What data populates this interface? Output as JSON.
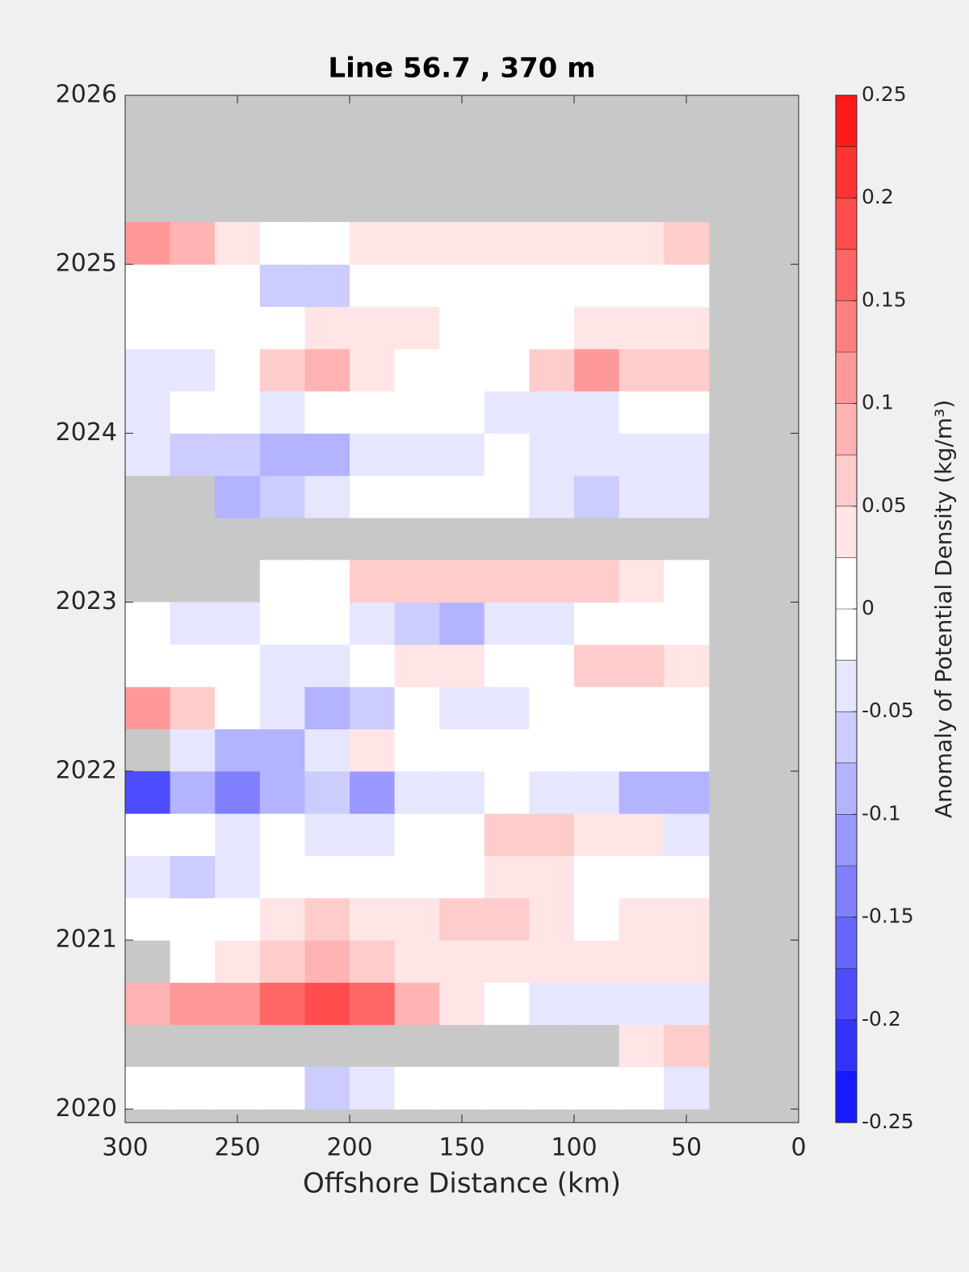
{
  "chart_data": {
    "type": "contourf",
    "title": "Line 56.7 , 370 m",
    "x_label": "Offshore Distance (km)",
    "colorbar_label": "Anomaly of Potential Density (kg/m³)",
    "xlim": [
      300,
      0
    ],
    "xticks": [
      300,
      250,
      200,
      150,
      100,
      50,
      0
    ],
    "ylim": [
      2019.92,
      2026
    ],
    "yticks": [
      2020,
      2021,
      2022,
      2023,
      2024,
      2025,
      2026
    ],
    "clim": [
      -0.25,
      0.25
    ],
    "cticks": [
      -0.25,
      -0.2,
      -0.15,
      -0.1,
      -0.05,
      0,
      0.05,
      0.1,
      0.15,
      0.2,
      0.25
    ],
    "levels": [
      -0.25,
      -0.225,
      -0.2,
      -0.175,
      -0.15,
      -0.125,
      -0.1,
      -0.075,
      -0.05,
      -0.025,
      0,
      0.025,
      0.05,
      0.075,
      0.1,
      0.125,
      0.15,
      0.175,
      0.2,
      0.225,
      0.25
    ],
    "colormap": [
      "#0000ff",
      "#ffffff",
      "#ff0000"
    ],
    "missing_color": "#c8c8c8",
    "x": [
      290,
      270,
      250,
      230,
      210,
      190,
      170,
      150,
      130,
      110,
      90,
      70,
      50
    ],
    "y": [
      2020.125,
      2020.375,
      2020.625,
      2020.875,
      2021.125,
      2021.375,
      2021.625,
      2021.875,
      2022.125,
      2022.375,
      2022.625,
      2022.875,
      2023.125,
      2023.375,
      2023.625,
      2023.875,
      2024.125,
      2024.375,
      2024.625,
      2024.875,
      2025.125
    ],
    "z": [
      [
        0,
        0,
        0,
        -0.02,
        -0.06,
        -0.04,
        0,
        0,
        0,
        0,
        0,
        -0.02,
        -0.05
      ],
      [
        null,
        null,
        null,
        null,
        null,
        null,
        null,
        null,
        null,
        null,
        null,
        0.03,
        0.05
      ],
      [
        0.08,
        0.1,
        0.12,
        0.17,
        0.18,
        0.15,
        0.08,
        0.03,
        0,
        -0.03,
        -0.05,
        -0.03,
        -0.03
      ],
      [
        null,
        0,
        0.04,
        0.06,
        0.08,
        0.07,
        0.04,
        0.03,
        0.03,
        0.03,
        0.03,
        0.03,
        0.03
      ],
      [
        0,
        0,
        0,
        0.03,
        0.05,
        0.03,
        0.03,
        0.05,
        0.05,
        0.03,
        0.02,
        0.03,
        0.03
      ],
      [
        -0.05,
        -0.07,
        -0.03,
        0,
        0,
        0,
        0,
        0,
        0.03,
        0.03,
        0.02,
        0,
        0
      ],
      [
        0,
        0,
        -0.03,
        0,
        -0.04,
        -0.05,
        0,
        0,
        0.05,
        0.05,
        0.03,
        0.03,
        -0.04
      ],
      [
        -0.18,
        -0.1,
        -0.15,
        -0.1,
        -0.06,
        -0.12,
        -0.04,
        -0.03,
        0,
        -0.05,
        -0.05,
        -0.08,
        -0.1
      ],
      [
        null,
        -0.05,
        -0.1,
        -0.08,
        -0.03,
        0.04,
        0,
        0,
        0,
        0,
        -0.02,
        0,
        0
      ],
      [
        0.1,
        0.06,
        0,
        -0.03,
        -0.08,
        -0.06,
        0,
        -0.05,
        -0.03,
        0,
        0,
        0,
        0
      ],
      [
        0,
        0,
        0,
        -0.05,
        -0.03,
        0,
        0.03,
        0.04,
        0,
        0,
        0.05,
        0.06,
        0.03
      ],
      [
        0,
        -0.04,
        -0.04,
        0,
        0,
        -0.03,
        -0.06,
        -0.08,
        -0.05,
        -0.03,
        -0.02,
        0,
        0
      ],
      [
        null,
        null,
        null,
        0,
        0.02,
        0.05,
        0.06,
        0.06,
        0.05,
        0.06,
        0.06,
        0.04,
        0.02
      ],
      [
        null,
        null,
        null,
        null,
        null,
        null,
        null,
        null,
        null,
        null,
        null,
        null,
        null
      ],
      [
        null,
        null,
        -0.08,
        -0.06,
        -0.03,
        0,
        0,
        0,
        0,
        -0.03,
        -0.07,
        -0.05,
        -0.03
      ],
      [
        -0.05,
        -0.06,
        -0.07,
        -0.1,
        -0.08,
        -0.04,
        -0.03,
        -0.03,
        -0.02,
        -0.03,
        -0.05,
        -0.05,
        -0.04
      ],
      [
        -0.04,
        -0.02,
        0,
        -0.03,
        0,
        0,
        0,
        -0.02,
        -0.03,
        -0.03,
        -0.03,
        -0.02,
        0
      ],
      [
        -0.05,
        -0.03,
        0,
        0.06,
        0.08,
        0.03,
        0,
        0,
        0,
        0.05,
        0.1,
        0.05,
        0.05
      ],
      [
        0,
        0,
        0,
        0,
        0.03,
        0.03,
        0.03,
        0,
        0,
        0,
        0.03,
        0.03,
        0.03
      ],
      [
        0.02,
        0,
        -0.02,
        -0.06,
        -0.06,
        -0.02,
        0,
        0,
        0,
        0,
        0,
        0,
        0
      ],
      [
        0.1,
        0.08,
        0.03,
        0,
        0,
        0.03,
        0.03,
        0.03,
        0.03,
        0.03,
        0.03,
        0.03,
        0.05
      ]
    ]
  }
}
